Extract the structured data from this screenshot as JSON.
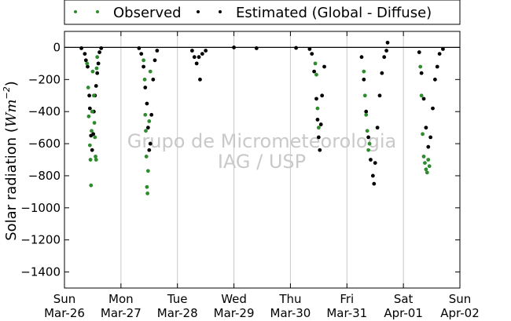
{
  "chart_data": {
    "type": "scatter",
    "title": "",
    "xlabel": "",
    "ylabel": "Solar radiation (Wm⁻²)",
    "ylabel_main": "Solar radiation (",
    "ylabel_unit": "Wm",
    "ylabel_exp": "−2",
    "ylabel_close": ")",
    "ylim": [
      -1500,
      100
    ],
    "yticks": [
      0,
      -200,
      -400,
      -600,
      -800,
      -1000,
      -1200,
      -1400
    ],
    "xlim": [
      0,
      7
    ],
    "grid": "vertical",
    "legend_placement": "top",
    "watermark": [
      "Grupo de Micrometeorologia",
      "IAG / USP"
    ],
    "xticks": [
      {
        "day": "Sun",
        "date": "Mar-26"
      },
      {
        "day": "Mon",
        "date": "Mar-27"
      },
      {
        "day": "Tue",
        "date": "Mar-28"
      },
      {
        "day": "Wed",
        "date": "Mar-29"
      },
      {
        "day": "Thu",
        "date": "Mar-30"
      },
      {
        "day": "Fri",
        "date": "Mar-31"
      },
      {
        "day": "Sat",
        "date": "Apr-01"
      },
      {
        "day": "Sun",
        "date": "Apr-02"
      }
    ],
    "series": [
      {
        "name": "Observed",
        "color": "#2e8b2e",
        "points": [
          [
            0.4,
            -100
          ],
          [
            0.42,
            -250
          ],
          [
            0.43,
            -430
          ],
          [
            0.45,
            -610
          ],
          [
            0.46,
            -700
          ],
          [
            0.47,
            -860
          ],
          [
            0.48,
            -520
          ],
          [
            0.49,
            -400
          ],
          [
            0.5,
            -150
          ],
          [
            0.52,
            -300
          ],
          [
            0.53,
            -470
          ],
          [
            0.54,
            -560
          ],
          [
            0.55,
            -680
          ],
          [
            0.56,
            -700
          ],
          [
            0.57,
            -130
          ],
          [
            0.58,
            -60
          ],
          [
            1.4,
            -80
          ],
          [
            1.42,
            -200
          ],
          [
            1.43,
            -420
          ],
          [
            1.44,
            -520
          ],
          [
            1.45,
            -680
          ],
          [
            1.46,
            -870
          ],
          [
            1.47,
            -910
          ],
          [
            1.48,
            -770
          ],
          [
            1.5,
            -460
          ],
          [
            1.52,
            -150
          ],
          [
            4.44,
            -100
          ],
          [
            4.46,
            -170
          ],
          [
            4.48,
            -380
          ],
          [
            4.5,
            -500
          ],
          [
            5.3,
            -150
          ],
          [
            5.32,
            -300
          ],
          [
            5.34,
            -420
          ],
          [
            5.36,
            -520
          ],
          [
            5.38,
            -640
          ],
          [
            5.4,
            -600
          ],
          [
            6.3,
            -120
          ],
          [
            6.32,
            -300
          ],
          [
            6.34,
            -540
          ],
          [
            6.36,
            -680
          ],
          [
            6.38,
            -720
          ],
          [
            6.4,
            -760
          ],
          [
            6.42,
            -780
          ],
          [
            6.44,
            -700
          ],
          [
            6.46,
            -740
          ]
        ]
      },
      {
        "name": "Estimated (Global - Diffuse)",
        "color": "#000000",
        "points": [
          [
            0.3,
            -5
          ],
          [
            0.36,
            -40
          ],
          [
            0.38,
            -80
          ],
          [
            0.41,
            -120
          ],
          [
            0.44,
            -300
          ],
          [
            0.45,
            -380
          ],
          [
            0.47,
            -550
          ],
          [
            0.49,
            -640
          ],
          [
            0.51,
            -540
          ],
          [
            0.52,
            -400
          ],
          [
            0.54,
            -300
          ],
          [
            0.56,
            -240
          ],
          [
            0.58,
            -160
          ],
          [
            0.6,
            -100
          ],
          [
            0.62,
            -30
          ],
          [
            0.65,
            -5
          ],
          [
            1.32,
            -5
          ],
          [
            1.36,
            -40
          ],
          [
            1.4,
            -120
          ],
          [
            1.43,
            -250
          ],
          [
            1.46,
            -350
          ],
          [
            1.48,
            -500
          ],
          [
            1.5,
            -640
          ],
          [
            1.52,
            -600
          ],
          [
            1.54,
            -420
          ],
          [
            1.57,
            -200
          ],
          [
            1.6,
            -80
          ],
          [
            1.64,
            -20
          ],
          [
            2.26,
            -20
          ],
          [
            2.3,
            -60
          ],
          [
            2.34,
            -100
          ],
          [
            2.38,
            -60
          ],
          [
            2.4,
            -200
          ],
          [
            2.44,
            -40
          ],
          [
            2.5,
            -20
          ],
          [
            3.0,
            0
          ],
          [
            3.4,
            -5
          ],
          [
            4.1,
            -3
          ],
          [
            4.34,
            -10
          ],
          [
            4.38,
            -40
          ],
          [
            4.42,
            -150
          ],
          [
            4.46,
            -320
          ],
          [
            4.48,
            -450
          ],
          [
            4.5,
            -560
          ],
          [
            4.52,
            -640
          ],
          [
            4.54,
            -480
          ],
          [
            4.56,
            -300
          ],
          [
            4.6,
            -120
          ],
          [
            5.26,
            -60
          ],
          [
            5.3,
            -200
          ],
          [
            5.34,
            -400
          ],
          [
            5.38,
            -560
          ],
          [
            5.42,
            -700
          ],
          [
            5.46,
            -800
          ],
          [
            5.48,
            -850
          ],
          [
            5.5,
            -720
          ],
          [
            5.54,
            -500
          ],
          [
            5.58,
            -300
          ],
          [
            5.62,
            -160
          ],
          [
            5.66,
            -60
          ],
          [
            5.7,
            -20
          ],
          [
            5.72,
            30
          ],
          [
            6.28,
            -30
          ],
          [
            6.32,
            -160
          ],
          [
            6.36,
            -320
          ],
          [
            6.4,
            -500
          ],
          [
            6.44,
            -620
          ],
          [
            6.48,
            -560
          ],
          [
            6.52,
            -380
          ],
          [
            6.56,
            -200
          ],
          [
            6.6,
            -120
          ],
          [
            6.64,
            -40
          ],
          [
            6.7,
            -10
          ]
        ]
      }
    ]
  }
}
